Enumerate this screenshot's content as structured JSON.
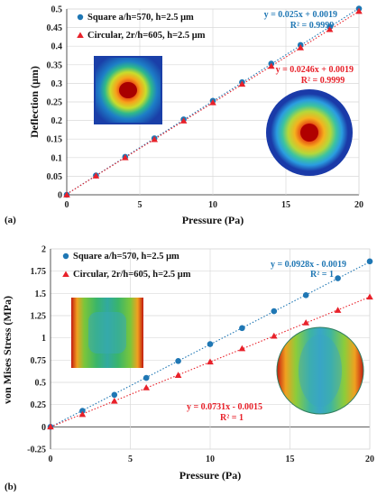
{
  "chart_data": [
    {
      "type": "scatter",
      "panel_label": "(a)",
      "xlabel": "Pressure (Pa)",
      "ylabel": "Deflection (μm)",
      "xlim": [
        0,
        20
      ],
      "ylim": [
        0,
        0.5
      ],
      "xticks": [
        "0",
        "5",
        "10",
        "15",
        "20"
      ],
      "yticks": [
        "0",
        "0.05",
        "0.1",
        "0.15",
        "0.2",
        "0.25",
        "0.3",
        "0.35",
        "0.4",
        "0.45",
        "0.5"
      ],
      "grid": true,
      "legend_position": "top-left",
      "series": [
        {
          "name": "Square a/h=570, h=2.5 μm",
          "marker": "circle",
          "color": "#1f77b4",
          "x": [
            0,
            2,
            4,
            6,
            8,
            10,
            12,
            14,
            16,
            18,
            20
          ],
          "y": [
            0.0,
            0.052,
            0.102,
            0.152,
            0.203,
            0.253,
            0.303,
            0.353,
            0.403,
            0.452,
            0.501
          ],
          "trendline_equation": "y = 0.025x + 0.0019",
          "r_squared": "R² = 0.9999",
          "slope": 0.025,
          "intercept": 0.0019
        },
        {
          "name": "Circular, 2r/h=605, h=2.5 μm",
          "marker": "triangle",
          "color": "#e8212a",
          "x": [
            0,
            2,
            4,
            6,
            8,
            10,
            12,
            14,
            16,
            18,
            20
          ],
          "y": [
            0.0,
            0.051,
            0.1,
            0.149,
            0.199,
            0.248,
            0.298,
            0.346,
            0.396,
            0.445,
            0.494
          ],
          "trendline_equation": "y = 0.0246x + 0.0019",
          "r_squared": "R² = 0.9999",
          "slope": 0.0246,
          "intercept": 0.0019
        }
      ]
    },
    {
      "type": "scatter",
      "panel_label": "(b)",
      "xlabel": "Pressure (Pa)",
      "ylabel": "von Mises Stress (MPa)",
      "xlim": [
        0,
        20
      ],
      "ylim": [
        -0.25,
        2
      ],
      "xticks": [
        "0",
        "5",
        "10",
        "15",
        "20"
      ],
      "yticks": [
        "-0.25",
        "0",
        "0.25",
        "0.5",
        "0.75",
        "1",
        "1.25",
        "1.5",
        "1.75",
        "2"
      ],
      "grid": true,
      "legend_position": "top-left",
      "series": [
        {
          "name": "Square a/h=570, h=2.5 μm",
          "marker": "circle",
          "color": "#1f77b4",
          "x": [
            0,
            2,
            4,
            6,
            8,
            10,
            12,
            14,
            16,
            18,
            20
          ],
          "y": [
            0.0,
            0.18,
            0.36,
            0.55,
            0.74,
            0.93,
            1.11,
            1.3,
            1.48,
            1.67,
            1.86
          ],
          "trendline_equation": "y = 0.0928x - 0.0019",
          "r_squared": "R² = 1",
          "slope": 0.0928,
          "intercept": -0.0019
        },
        {
          "name": "Circular, 2r/h=605, h=2.5 μm",
          "marker": "triangle",
          "color": "#e8212a",
          "x": [
            0,
            2,
            4,
            6,
            8,
            10,
            12,
            14,
            16,
            18,
            20
          ],
          "y": [
            0.0,
            0.14,
            0.29,
            0.44,
            0.58,
            0.73,
            0.88,
            1.02,
            1.17,
            1.31,
            1.46
          ],
          "trendline_equation": "y = 0.0731x - 0.0015",
          "r_squared": "R² = 1",
          "slope": 0.0731,
          "intercept": -0.0015
        }
      ]
    }
  ]
}
